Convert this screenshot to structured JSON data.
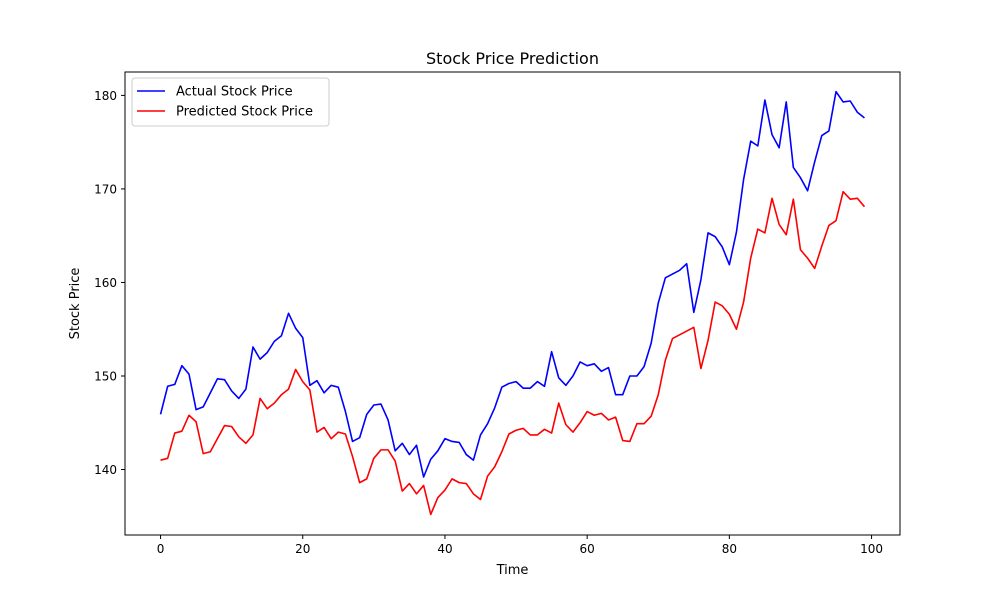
{
  "chart_data": {
    "type": "line",
    "title": "Stock Price Prediction",
    "xlabel": "Time",
    "ylabel": "Stock Price",
    "xlim": [
      -5,
      104
    ],
    "ylim": [
      133,
      182.5
    ],
    "xticks": [
      0,
      20,
      40,
      60,
      80,
      100
    ],
    "yticks": [
      140,
      150,
      160,
      170,
      180
    ],
    "grid": false,
    "legend_position": "top-left",
    "x": [
      0,
      1,
      2,
      3,
      4,
      5,
      6,
      7,
      8,
      9,
      10,
      11,
      12,
      13,
      14,
      15,
      16,
      17,
      18,
      19,
      20,
      21,
      22,
      23,
      24,
      25,
      26,
      27,
      28,
      29,
      30,
      31,
      32,
      33,
      34,
      35,
      36,
      37,
      38,
      39,
      40,
      41,
      42,
      43,
      44,
      45,
      46,
      47,
      48,
      49,
      50,
      51,
      52,
      53,
      54,
      55,
      56,
      57,
      58,
      59,
      60,
      61,
      62,
      63,
      64,
      65,
      66,
      67,
      68,
      69,
      70,
      71,
      72,
      73,
      74,
      75,
      76,
      77,
      78,
      79,
      80,
      81,
      82,
      83,
      84,
      85,
      86,
      87,
      88,
      89,
      90,
      91,
      92,
      93,
      94,
      95,
      96,
      97,
      98,
      99
    ],
    "series": [
      {
        "name": "Actual Stock Price",
        "color": "#0000ff",
        "values": [
          145.9,
          148.9,
          149.1,
          151.1,
          150.2,
          146.4,
          146.7,
          148.2,
          149.7,
          149.6,
          148.4,
          147.6,
          148.6,
          153.1,
          151.8,
          152.5,
          153.7,
          154.3,
          156.7,
          155.1,
          154.1,
          149.0,
          149.5,
          148.2,
          149.0,
          148.8,
          146.2,
          143.0,
          143.4,
          145.9,
          146.9,
          147.0,
          145.3,
          142.0,
          142.8,
          141.6,
          142.6,
          139.2,
          141.1,
          142.0,
          143.3,
          143.0,
          142.9,
          141.6,
          141.0,
          143.7,
          144.9,
          146.6,
          148.8,
          149.2,
          149.4,
          148.7,
          148.7,
          149.4,
          148.9,
          152.6,
          149.8,
          149.0,
          150.0,
          151.5,
          151.1,
          151.3,
          150.5,
          150.9,
          148.0,
          148.0,
          150.0,
          150.0,
          151.0,
          153.5,
          157.8,
          160.5,
          160.9,
          161.3,
          162.0,
          156.8,
          160.3,
          165.3,
          164.9,
          163.8,
          161.9,
          165.4,
          171.0,
          175.1,
          174.6,
          179.5,
          175.8,
          174.4,
          179.3,
          172.3,
          171.2,
          169.8,
          172.9,
          175.7,
          176.2,
          180.4,
          179.3,
          179.4,
          178.2,
          177.6
        ]
      },
      {
        "name": "Predicted Stock Price",
        "color": "#ff0000",
        "values": [
          141.0,
          141.2,
          143.9,
          144.1,
          145.8,
          145.1,
          141.7,
          141.9,
          143.3,
          144.7,
          144.6,
          143.5,
          142.8,
          143.7,
          147.6,
          146.5,
          147.1,
          148.0,
          148.6,
          150.7,
          149.4,
          148.5,
          144.0,
          144.5,
          143.3,
          144.0,
          143.8,
          141.4,
          138.6,
          139.0,
          141.2,
          142.1,
          142.1,
          140.9,
          137.7,
          138.5,
          137.4,
          138.3,
          135.2,
          137.0,
          137.8,
          139.0,
          138.6,
          138.5,
          137.4,
          136.8,
          139.3,
          140.3,
          141.9,
          143.8,
          144.2,
          144.4,
          143.7,
          143.7,
          144.3,
          143.9,
          147.1,
          144.8,
          144.0,
          145.0,
          146.2,
          145.8,
          146.0,
          145.3,
          145.6,
          143.1,
          143.0,
          144.9,
          144.9,
          145.7,
          148.0,
          151.7,
          154.0,
          154.4,
          154.8,
          155.2,
          150.8,
          153.8,
          157.9,
          157.5,
          156.6,
          155.0,
          157.9,
          162.6,
          165.7,
          165.3,
          169.0,
          166.2,
          165.1,
          168.9,
          163.5,
          162.6,
          161.5,
          163.9,
          166.1,
          166.6,
          169.7,
          168.9,
          169.0,
          168.1
        ]
      }
    ]
  }
}
